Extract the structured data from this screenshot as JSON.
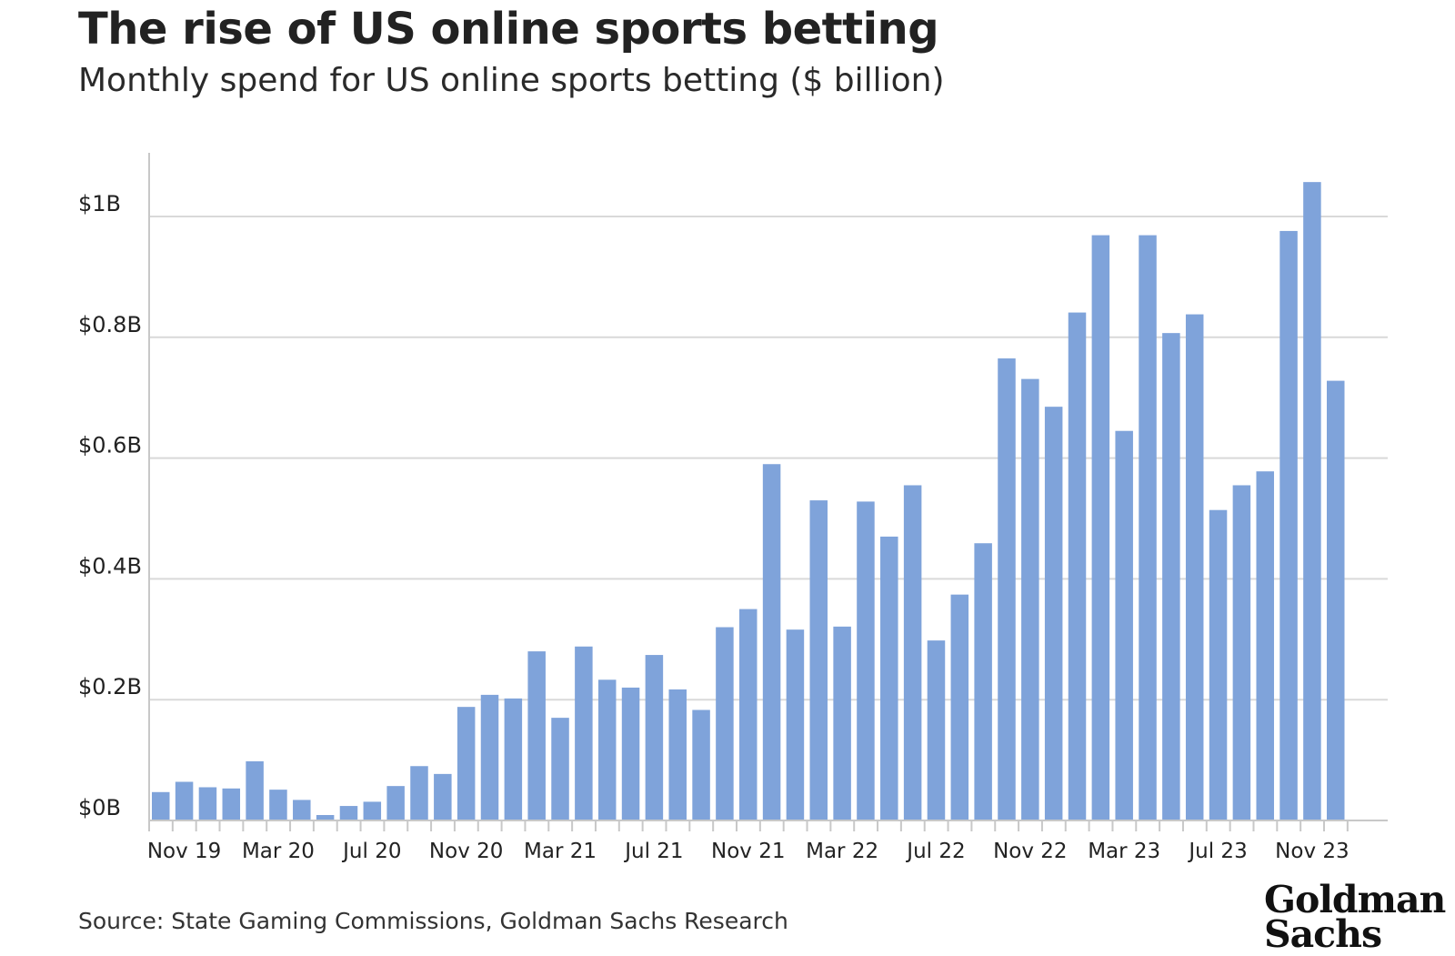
{
  "title": "The rise of US online sports betting",
  "subtitle": "Monthly spend for US online sports betting ($ billion)",
  "source": "Source: State Gaming Commissions, Goldman Sachs Research",
  "logo": {
    "line1": "Goldman",
    "line2": "Sachs"
  },
  "colors": {
    "bar": "#7fa3da",
    "grid": "#d9d9d9",
    "axis": "#c8c8c8",
    "text": "#222222"
  },
  "chart_data": {
    "type": "bar",
    "categories": [
      "Oct 19",
      "Nov 19",
      "Dec 19",
      "Jan 20",
      "Feb 20",
      "Mar 20",
      "Apr 20",
      "May 20",
      "Jun 20",
      "Jul 20",
      "Aug 20",
      "Sep 20",
      "Oct 20",
      "Nov 20",
      "Dec 20",
      "Jan 21",
      "Feb 21",
      "Mar 21",
      "Apr 21",
      "May 21",
      "Jun 21",
      "Jul 21",
      "Aug 21",
      "Sep 21",
      "Oct 21",
      "Nov 21",
      "Dec 21",
      "Jan 22",
      "Feb 22",
      "Mar 22",
      "Apr 22",
      "May 22",
      "Jun 22",
      "Jul 22",
      "Aug 22",
      "Sep 22",
      "Oct 22",
      "Nov 22",
      "Dec 22",
      "Jan 23",
      "Feb 23",
      "Mar 23",
      "Apr 23",
      "May 23",
      "Jun 23",
      "Jul 23",
      "Aug 23",
      "Sep 23",
      "Oct 23",
      "Nov 23",
      "Dec 23"
    ],
    "values": [
      0.047,
      0.064,
      0.055,
      0.053,
      0.098,
      0.051,
      0.034,
      0.009,
      0.024,
      0.031,
      0.057,
      0.09,
      0.077,
      0.188,
      0.208,
      0.202,
      0.28,
      0.17,
      0.288,
      0.233,
      0.22,
      0.274,
      0.217,
      0.183,
      0.32,
      0.35,
      0.59,
      0.316,
      0.53,
      0.321,
      0.528,
      0.47,
      0.555,
      0.298,
      0.374,
      0.459,
      0.765,
      0.731,
      0.685,
      0.841,
      0.969,
      0.645,
      0.969,
      0.807,
      0.838,
      0.514,
      0.555,
      0.578,
      0.976,
      1.057,
      0.728
    ],
    "x_tick_labels": [
      "Nov 19",
      "Mar 20",
      "Jul 20",
      "Nov 20",
      "Mar 21",
      "Jul 21",
      "Nov 21",
      "Mar 22",
      "Jul 22",
      "Nov 22",
      "Mar 23",
      "Jul 23",
      "Nov 23"
    ],
    "y_ticks": [
      0,
      0.2,
      0.4,
      0.6,
      0.8,
      1.0
    ],
    "y_tick_labels": [
      "$0B",
      "$0.2B",
      "$0.4B",
      "$0.6B",
      "$0.8B",
      "$1B"
    ],
    "ylim": [
      0,
      1.1
    ],
    "grid": true,
    "xlabel": "",
    "ylabel": ""
  }
}
